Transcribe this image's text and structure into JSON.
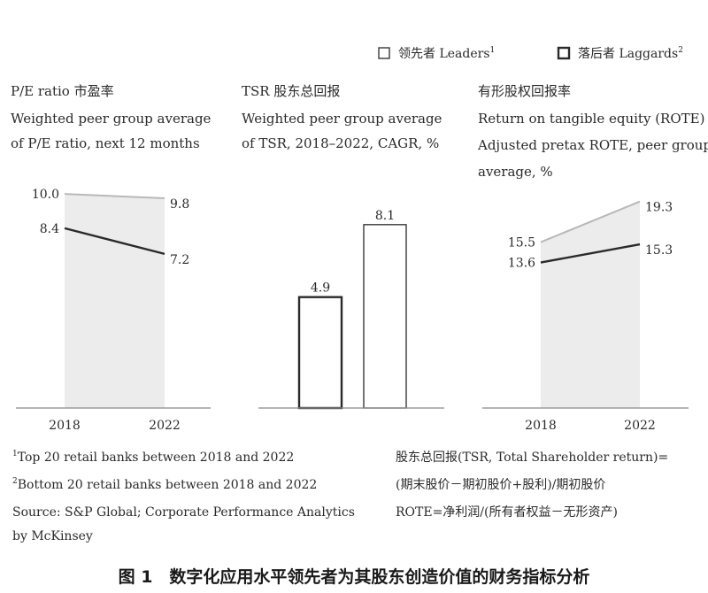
{
  "legend": {
    "leaders": "领先者 Leaders",
    "leaders_sup": "1",
    "laggards": "落后者 Laggards",
    "laggards_sup": "2"
  },
  "chart_data": [
    {
      "type": "line",
      "title": "P/E ratio 市盈率",
      "subtitle": [
        "Weighted peer group average",
        "of P/E ratio, next 12 months"
      ],
      "categories": [
        "2018",
        "2022"
      ],
      "series": [
        {
          "name": "领先者 Leaders",
          "values": [
            10.0,
            9.8
          ]
        },
        {
          "name": "落后者 Laggards",
          "values": [
            8.4,
            7.2
          ]
        }
      ],
      "value_labels": {
        "leaders": [
          "10.0",
          "9.8"
        ],
        "laggards": [
          "8.4",
          "7.2"
        ]
      },
      "ylim": [
        0,
        11
      ]
    },
    {
      "type": "bar",
      "title": "TSR 股东总回报",
      "subtitle": [
        "Weighted peer group average",
        "of TSR, 2018–2022, CAGR, %"
      ],
      "series": [
        {
          "name": "落后者 Laggards",
          "values": [
            4.9
          ]
        },
        {
          "name": "领先者 Leaders",
          "values": [
            8.1
          ]
        }
      ],
      "value_labels": {
        "laggards": "4.9",
        "leaders": "8.1"
      },
      "ylim": [
        0,
        10.4
      ]
    },
    {
      "type": "line",
      "title": "有形股权回报率",
      "subtitle": [
        "Return on tangible equity (ROTE)",
        "Adjusted pretax ROTE, peer group",
        "average, %"
      ],
      "categories": [
        "2018",
        "2022"
      ],
      "series": [
        {
          "name": "领先者 Leaders",
          "values": [
            15.5,
            19.3
          ]
        },
        {
          "name": "落后者 Laggards",
          "values": [
            13.6,
            15.3
          ]
        }
      ],
      "value_labels": {
        "leaders": [
          "15.5",
          "19.3"
        ],
        "laggards": [
          "13.6",
          "15.3"
        ]
      },
      "ylim": [
        0,
        22
      ]
    }
  ],
  "footnotes": {
    "note1_sup": "1",
    "note1": "Top 20 retail banks between 2018 and 2022",
    "note2_sup": "2",
    "note2": "Bottom 20 retail banks between 2018 and 2022",
    "source1": "Source: S&P Global; Corporate Performance Analytics",
    "source2": "by McKinsey"
  },
  "definitions": [
    "股东总回报(TSR, Total Shareholder return)=",
    "(期末股价－期初股价+股利)/期初股价",
    "ROTE=净利润/(所有者权益－无形资产)"
  ],
  "caption": "图 1　数字化应用水平领先者为其股东创造价值的财务指标分析",
  "colors": {
    "line": "#2a2a2a",
    "leaders_line": "#b8b8b8",
    "fill": "#ececec",
    "axis": "#8a8a8a"
  }
}
